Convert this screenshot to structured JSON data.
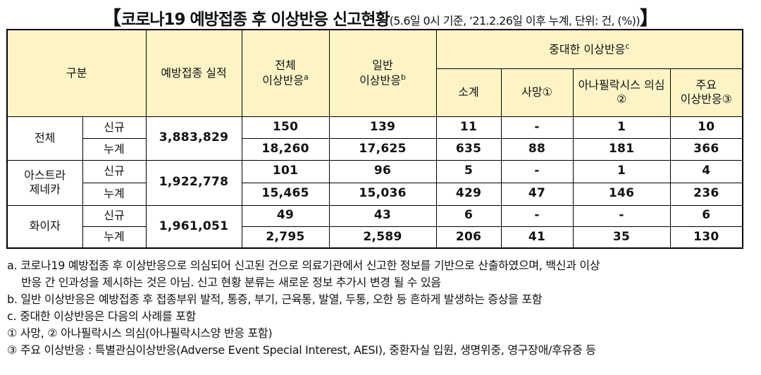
{
  "title": {
    "open_bracket": "【",
    "main": "코로나19 예방접종 후 이상반응 신고현황",
    "sub": "(5.6일 0시 기준, ‘21.2.26일 이후 누계, 단위: 건, (%))",
    "close_bracket": "】"
  },
  "header": {
    "category": "구분",
    "vaccinations": "예방접종 실적",
    "total_line1": "전체",
    "total_line2": "이상반응",
    "total_sup": "a",
    "general_line1": "일반",
    "general_line2": "이상반응",
    "general_sup": "b",
    "serious": "중대한 이상반응",
    "serious_sup": "c",
    "subtotal": "소계",
    "death": "사망①",
    "anaphylaxis": "아나필락시스 의심②",
    "major_line1": "주요",
    "major_line2": "이상반응③"
  },
  "rows": [
    {
      "group_lines": [
        "전체"
      ],
      "vaccinations": "3,883,829",
      "new": {
        "label": "신규",
        "total": "150",
        "general": "139",
        "subtotal": "11",
        "death": "-",
        "anaphylaxis": "1",
        "major": "10"
      },
      "cum": {
        "label": "누계",
        "total": "18,260",
        "general": "17,625",
        "subtotal": "635",
        "death": "88",
        "anaphylaxis": "181",
        "major": "366"
      }
    },
    {
      "group_lines": [
        "아스트라",
        "제네카"
      ],
      "vaccinations": "1,922,778",
      "new": {
        "label": "신규",
        "total": "101",
        "general": "96",
        "subtotal": "5",
        "death": "-",
        "anaphylaxis": "1",
        "major": "4"
      },
      "cum": {
        "label": "누계",
        "total": "15,465",
        "general": "15,036",
        "subtotal": "429",
        "death": "47",
        "anaphylaxis": "146",
        "major": "236"
      }
    },
    {
      "group_lines": [
        "화이자"
      ],
      "vaccinations": "1,961,051",
      "new": {
        "label": "신규",
        "total": "49",
        "general": "43",
        "subtotal": "6",
        "death": "-",
        "anaphylaxis": "-",
        "major": "6"
      },
      "cum": {
        "label": "누계",
        "total": "2,795",
        "general": "2,589",
        "subtotal": "206",
        "death": "41",
        "anaphylaxis": "35",
        "major": "130"
      }
    }
  ],
  "notes": {
    "a_line1": "a. 코로나19 예방접종 후 이상반응으로 의심되어 신고된 건으로 의료기관에서 신고한 정보를 기반으로 산출하였으며, 백신과 이상",
    "a_line2": "반응 간 인과성을 제시하는 것은 아님. 신고 현황 분류는 새로운 정보 추가시 변경 될 수 있음",
    "b": "b. 일반 이상반응은 예방접종 후 접종부위 발적, 통증, 부기, 근육통, 발열, 두통, 오한 등 흔하게 발생하는 증상을 포함",
    "c": "c. 중대한 이상반응은 다음의 사례를 포함",
    "c1": "① 사망, ② 아나필락시스 의심(아나필락시스양 반응 포함)",
    "c3": "③ 주요 이상반응 : 특별관심이상반응(Adverse Event Special Interest, AESI), 중환자실 입원, 생명위중, 영구장애/후유증 등"
  },
  "colors": {
    "header_bg": "#fdf4c6",
    "border": "#000000"
  }
}
